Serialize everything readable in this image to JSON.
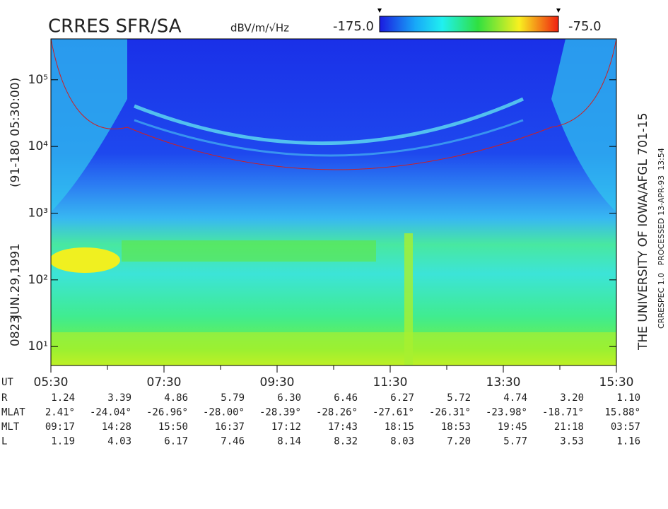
{
  "chart_data": {
    "type": "spectrogram",
    "title": "CRRES SFR/SA",
    "colorbar": {
      "label": "dBV/m/√Hz",
      "clim": [
        -175,
        -75
      ],
      "ticks": [
        {
          "value": -175,
          "label": "-175.0"
        },
        {
          "value": -75,
          "label": "-75.0"
        }
      ]
    },
    "y_scale": "log",
    "ylim": [
      5.2,
      410000
    ],
    "yticks": [
      {
        "value": 10,
        "label": "10¹"
      },
      {
        "value": 100,
        "label": "10²"
      },
      {
        "value": 1000,
        "label": "10³"
      },
      {
        "value": 10000,
        "label": "10⁴"
      },
      {
        "value": 100000,
        "label": "10⁵"
      }
    ],
    "xlim": [
      5.5,
      15.5
    ],
    "xticks": [
      {
        "value": 5.5,
        "label": "05:30"
      },
      {
        "value": 7.5,
        "label": "07:30"
      },
      {
        "value": 9.5,
        "label": "09:30"
      },
      {
        "value": 11.5,
        "label": "11:30"
      },
      {
        "value": 13.5,
        "label": "13:30"
      },
      {
        "value": 15.5,
        "label": "15:30"
      }
    ],
    "xminor_ticks": [
      6.5,
      8.5,
      10.5,
      12.5,
      14.5
    ],
    "left_labels": {
      "orbit": "0823",
      "date": "JUN.29,1991",
      "start": "(91-180 05:30:00)"
    },
    "right_labels": {
      "institution": "THE UNIVERSITY OF IOWA/AFGL 701-15",
      "processed": "CRRESPEC 1.0   PROCESSED 13-APR-93  13:54"
    },
    "ephemeris": {
      "x_label": "UT",
      "rows": [
        {
          "label": "R",
          "values": [
            "1.24",
            "3.39",
            "4.86",
            "5.79",
            "6.30",
            "6.46",
            "6.27",
            "5.72",
            "4.74",
            "3.20",
            "1.10"
          ]
        },
        {
          "label": "MLAT",
          "values": [
            "2.41°",
            "-24.04°",
            "-26.96°",
            "-28.00°",
            "-28.39°",
            "-28.26°",
            "-27.61°",
            "-26.31°",
            "-23.98°",
            "-18.71°",
            "15.88°"
          ]
        },
        {
          "label": "MLT",
          "values": [
            "09:17",
            "14:28",
            "15:50",
            "16:37",
            "17:12",
            "17:43",
            "18:15",
            "18:53",
            "19:45",
            "21:18",
            "03:57"
          ]
        },
        {
          "label": "L",
          "values": [
            "1.19",
            "4.03",
            "6.17",
            "7.46",
            "8.14",
            "8.32",
            "8.03",
            "7.20",
            "5.77",
            "3.53",
            "1.16"
          ]
        }
      ]
    }
  }
}
